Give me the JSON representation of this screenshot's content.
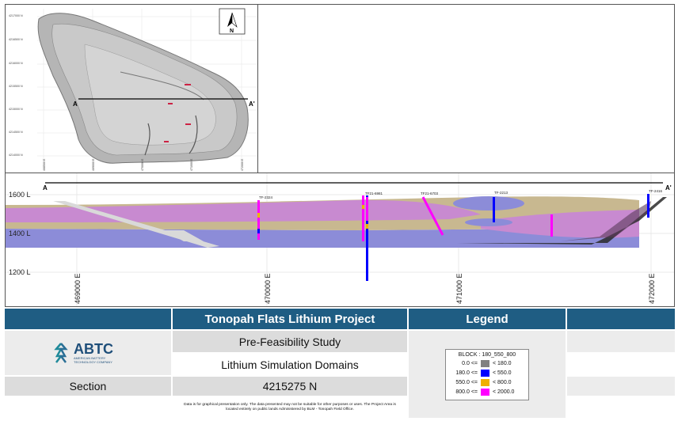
{
  "plan_map": {
    "northings": [
      "4217000 N",
      "4216500 N",
      "4216000 N",
      "4215500 N",
      "4215000 N",
      "4214500 N",
      "4214000 N"
    ],
    "eastings": [
      "468500 E",
      "469000 E",
      "470000 E",
      "471000 E",
      "472000 E"
    ],
    "north_label": "N",
    "section_start": "A",
    "section_end": "A'"
  },
  "section": {
    "elev_labels": [
      "1600 L",
      "1400 L",
      "1200 L"
    ],
    "easting_labels": [
      "469000 E",
      "470000 E",
      "471000 E",
      "472000 E"
    ],
    "start_label": "A",
    "end_label": "A'",
    "drillholes": [
      "TF-2324",
      "TF21-6981",
      "TF21-6703",
      "TF-2213",
      "TF-2416"
    ]
  },
  "legend_data": {
    "title": "BLOCK : 180_550_800",
    "items": [
      {
        "lower": "0.0 <=",
        "upper": "< 180.0",
        "color": "#808080"
      },
      {
        "lower": "180.0 <=",
        "upper": "< 550.0",
        "color": "#0000ff"
      },
      {
        "lower": "550.0 <=",
        "upper": "< 800.0",
        "color": "#f0b000"
      },
      {
        "lower": "800.0 <=",
        "upper": "< 2000.0",
        "color": "#ff00ff"
      }
    ]
  },
  "title_block": {
    "project_title": "Tonopah Flats Lithium Project",
    "legend_header": "Legend",
    "study": "Pre-Feasibility Study",
    "domain_title": "Lithium Simulation Domains",
    "section_label": "Section",
    "section_value": "4215275 N",
    "logo_text": "ABTC",
    "logo_subtext": "AMERICAN BATTERY TECHNOLOGY COMPANY",
    "disclaimer": "Data is for graphical presentation only. The data presented may not be suitable for other purposes or uses. The Project Area is located entirely on public lands Administered by BLM - Tonopah Field Office."
  }
}
